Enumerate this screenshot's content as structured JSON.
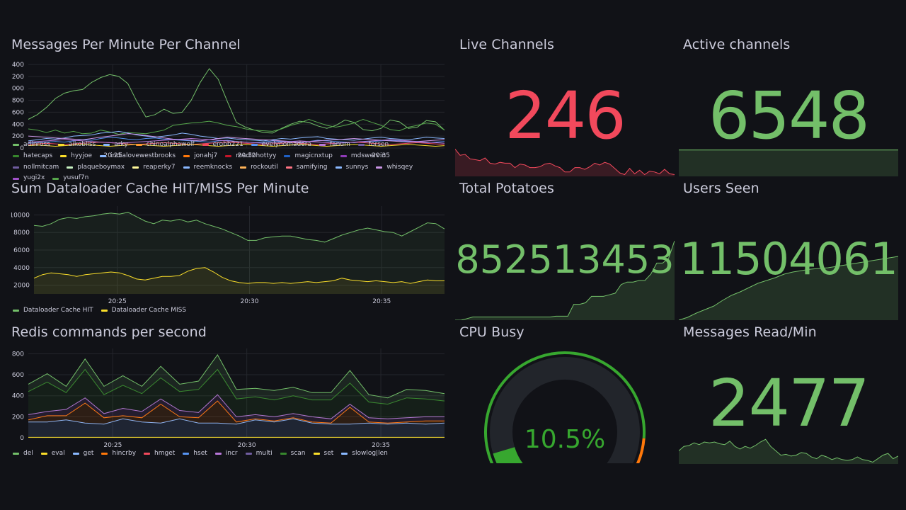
{
  "colors": {
    "background": "#111217",
    "grid": "#24262c",
    "axis_text": "#ccccdc",
    "stat_red": "#f2495c",
    "stat_green": "#73bf69",
    "gauge_green": "#37a72f",
    "gauge_orange": "#ff780a",
    "gauge_red": "#e02f44"
  },
  "panels": {
    "messages": {
      "title": "Messages Per Minute Per Channel",
      "legend": [
        {
          "name": "adinross",
          "color": "#73bf69"
        },
        {
          "name": "aikobliss",
          "color": "#fade2a"
        },
        {
          "name": "arky",
          "color": "#8ab8ff"
        },
        {
          "name": "chinoalphawolf",
          "color": "#ff9830"
        },
        {
          "name": "erobb221",
          "color": "#f2495c"
        },
        {
          "name": "evelynomadera",
          "color": "#5794f2"
        },
        {
          "name": "fanum",
          "color": "#b877d9"
        },
        {
          "name": "forsen",
          "color": "#705da0"
        },
        {
          "name": "hatecaps",
          "color": "#37872d"
        },
        {
          "name": "hyyjoe",
          "color": "#fade2a"
        },
        {
          "name": "indialovewestbrooks",
          "color": "#8ab8ff"
        },
        {
          "name": "jonahj7",
          "color": "#ff780a"
        },
        {
          "name": "madi2hottyy",
          "color": "#c4162a"
        },
        {
          "name": "magicnxtup",
          "color": "#1f60c4"
        },
        {
          "name": "mdswervin",
          "color": "#8f3bb8"
        },
        {
          "name": "nollmitcam",
          "color": "#705da0"
        },
        {
          "name": "plaqueboymax",
          "color": "#c8f2c2"
        },
        {
          "name": "reaperky7",
          "color": "#fff899"
        },
        {
          "name": "reemknocks",
          "color": "#8ab8ff"
        },
        {
          "name": "rockoutil",
          "color": "#ffb357"
        },
        {
          "name": "samifying",
          "color": "#ff7383"
        },
        {
          "name": "sunnys",
          "color": "#8ab8ff"
        },
        {
          "name": "whisqey",
          "color": "#ca95e5"
        },
        {
          "name": "yugi2x",
          "color": "#a352cc"
        },
        {
          "name": "yusuf7n",
          "color": "#56a64b"
        }
      ]
    },
    "dataloader": {
      "title": "Sum Dataloader Cache HIT/MISS Per Minute",
      "legend": [
        {
          "name": "Dataloader Cache HIT",
          "color": "#73bf69"
        },
        {
          "name": "Dataloader Cache MISS",
          "color": "#fade2a"
        }
      ]
    },
    "redis": {
      "title": "Redis commands per second",
      "legend": [
        {
          "name": "del",
          "color": "#73bf69"
        },
        {
          "name": "eval",
          "color": "#fade2a"
        },
        {
          "name": "get",
          "color": "#8ab8ff"
        },
        {
          "name": "hincrby",
          "color": "#ff780a"
        },
        {
          "name": "hmget",
          "color": "#f2495c"
        },
        {
          "name": "hset",
          "color": "#5794f2"
        },
        {
          "name": "incr",
          "color": "#b877d9"
        },
        {
          "name": "multi",
          "color": "#705da0"
        },
        {
          "name": "scan",
          "color": "#37872d"
        },
        {
          "name": "set",
          "color": "#fade2a"
        },
        {
          "name": "slowlog|len",
          "color": "#8ab8ff"
        }
      ]
    },
    "live_channels": {
      "title": "Live Channels",
      "value": "246",
      "color": "#f2495c",
      "spark": [
        0.62,
        0.48,
        0.5,
        0.4,
        0.38,
        0.36,
        0.42,
        0.3,
        0.28,
        0.32,
        0.3,
        0.3,
        0.2,
        0.28,
        0.26,
        0.2,
        0.2,
        0.22,
        0.28,
        0.3,
        0.24,
        0.2,
        0.1,
        0.1,
        0.2,
        0.2,
        0.16,
        0.22,
        0.3,
        0.26,
        0.32,
        0.28,
        0.18,
        0.08,
        0.04,
        0.18,
        0.06,
        0.14,
        0.04,
        0.12,
        0.1,
        0.06,
        0.16,
        0.06,
        0.04
      ]
    },
    "active_channels": {
      "title": "Active channels",
      "value": "6548",
      "color": "#73bf69",
      "spark": [
        0.6,
        0.6,
        0.6,
        0.6,
        0.6,
        0.6
      ]
    },
    "total_potatoes": {
      "title": "Total Potatoes",
      "value": "852513453",
      "color": "#73bf69",
      "spark": [
        0.0,
        0.0,
        0.02,
        0.04,
        0.04,
        0.04,
        0.04,
        0.04,
        0.04,
        0.04,
        0.04,
        0.04,
        0.04,
        0.04,
        0.04,
        0.04,
        0.04,
        0.05,
        0.05,
        0.05,
        0.2,
        0.2,
        0.22,
        0.3,
        0.3,
        0.3,
        0.32,
        0.34,
        0.45,
        0.48,
        0.48,
        0.5,
        0.5,
        0.58,
        0.72,
        0.72,
        0.78,
        1.0
      ]
    },
    "users_seen": {
      "title": "Users Seen",
      "value": "11504061",
      "color": "#73bf69",
      "spark": [
        0.0,
        0.04,
        0.1,
        0.15,
        0.2,
        0.28,
        0.35,
        0.4,
        0.46,
        0.52,
        0.56,
        0.6,
        0.65,
        0.68,
        0.7,
        0.72,
        0.73,
        0.74,
        0.76,
        0.78,
        0.8,
        0.82,
        0.84,
        0.86,
        0.88,
        0.9
      ]
    },
    "cpu_busy": {
      "title": "CPU Busy",
      "value": "10.5%",
      "percent": 10.5
    },
    "messages_read": {
      "title": "Messages Read/Min",
      "value": "2477",
      "color": "#73bf69",
      "spark": [
        0.3,
        0.4,
        0.42,
        0.48,
        0.44,
        0.5,
        0.48,
        0.5,
        0.46,
        0.44,
        0.52,
        0.4,
        0.34,
        0.4,
        0.36,
        0.42,
        0.5,
        0.56,
        0.4,
        0.3,
        0.2,
        0.22,
        0.18,
        0.2,
        0.26,
        0.24,
        0.16,
        0.12,
        0.2,
        0.16,
        0.1,
        0.14,
        0.1,
        0.08,
        0.1,
        0.16,
        0.1,
        0.08,
        0.04,
        0.12,
        0.2,
        0.24,
        0.12,
        0.18
      ]
    }
  },
  "chart_data": [
    {
      "type": "line",
      "title": "Messages Per Minute Per Channel",
      "x_ticks": [
        "20:25",
        "20:30",
        "20:35"
      ],
      "y_ticks": [
        "1400",
        "1200",
        "1000",
        "800",
        "600",
        "400",
        "200",
        "0"
      ],
      "ylim": [
        0,
        1400
      ],
      "series": [
        {
          "name": "adinross",
          "color": "#73bf69",
          "values": [
            480,
            560,
            680,
            830,
            920,
            960,
            980,
            1100,
            1180,
            1230,
            1200,
            1080,
            780,
            520,
            560,
            650,
            580,
            600,
            800,
            1100,
            1330,
            1150,
            780,
            430,
            350,
            300,
            260,
            250,
            330,
            400,
            450,
            430,
            370,
            330,
            380,
            470,
            430,
            310,
            290,
            330,
            470,
            440,
            330,
            350,
            460,
            440,
            300
          ]
        },
        {
          "name": "yusuf7n",
          "color": "#56a64b",
          "values": [
            320,
            300,
            260,
            300,
            250,
            280,
            240,
            250,
            300,
            270,
            230,
            260,
            250,
            240,
            270,
            300,
            380,
            400,
            420,
            430,
            450,
            420,
            380,
            360,
            320,
            300,
            290,
            280,
            320,
            380,
            420,
            480,
            430,
            380,
            350,
            380,
            420,
            480,
            430,
            380,
            310,
            290,
            350,
            380,
            420,
            400,
            300
          ]
        },
        {
          "name": "arky",
          "color": "#8ab8ff",
          "values": [
            120,
            140,
            160,
            150,
            170,
            200,
            210,
            220,
            250,
            260,
            280,
            250,
            220,
            200,
            180,
            200,
            220,
            250,
            230,
            200,
            180,
            160,
            170,
            150,
            140,
            130,
            120,
            140,
            160,
            150,
            170,
            180,
            190,
            160,
            150,
            140,
            130,
            150,
            170,
            180,
            160,
            150,
            140,
            160,
            180,
            170,
            160
          ]
        },
        {
          "name": "evelynomadera",
          "color": "#5794f2",
          "values": [
            80,
            90,
            100,
            110,
            100,
            120,
            140,
            130,
            160,
            180,
            170,
            150,
            140,
            160,
            170,
            150,
            140,
            130,
            120,
            110,
            100,
            120,
            130,
            110,
            100,
            90,
            100,
            120,
            110,
            100,
            90,
            110,
            130,
            120,
            110,
            100,
            90,
            100,
            110,
            120,
            130,
            120,
            110,
            100,
            90,
            100,
            110
          ]
        },
        {
          "name": "whisqey",
          "color": "#ca95e5",
          "values": [
            200,
            190,
            180,
            170,
            160,
            150,
            140,
            160,
            180,
            200,
            220,
            240,
            230,
            210,
            190,
            170,
            150,
            140,
            130,
            120,
            140,
            160,
            180,
            170,
            160,
            150,
            140,
            130,
            120,
            110,
            100,
            110,
            120,
            130,
            140,
            150,
            160,
            150,
            140,
            130,
            120,
            110,
            100,
            110,
            120,
            130,
            140
          ]
        },
        {
          "name": "erobb221",
          "color": "#f2495c",
          "values": [
            60,
            70,
            80,
            70,
            60,
            70,
            80,
            90,
            100,
            90,
            80,
            70,
            60,
            70,
            80,
            90,
            80,
            70,
            60,
            70,
            80,
            90,
            100,
            90,
            80,
            70,
            60,
            70,
            80,
            90,
            80,
            70,
            60,
            70,
            80,
            90,
            100,
            90,
            80,
            70,
            60,
            70,
            80,
            90,
            80,
            70,
            60
          ]
        },
        {
          "name": "fanum",
          "color": "#b877d9",
          "values": [
            100,
            110,
            120,
            130,
            140,
            130,
            120,
            110,
            100,
            90,
            80,
            90,
            100,
            110,
            120,
            130,
            140,
            150,
            160,
            150,
            140,
            130,
            120,
            110,
            100,
            90,
            80,
            90,
            100,
            110,
            120,
            110,
            100,
            90,
            80,
            90,
            100,
            110,
            120,
            130,
            140,
            130,
            120,
            110,
            100,
            90,
            80
          ]
        },
        {
          "name": "aikobliss",
          "color": "#fade2a",
          "values": [
            40,
            50,
            40,
            30,
            40,
            50,
            60,
            50,
            40,
            30,
            40,
            50,
            60,
            50,
            40,
            30,
            40,
            50,
            60,
            50,
            40,
            30,
            40,
            50,
            60,
            50,
            40,
            30,
            40,
            50,
            60,
            50,
            40,
            30,
            40,
            50,
            60,
            50,
            40,
            30,
            40,
            50,
            60,
            50,
            40,
            30,
            40
          ]
        }
      ]
    },
    {
      "type": "line",
      "title": "Sum Dataloader Cache HIT/MISS Per Minute",
      "x_ticks": [
        "20:25",
        "20:30",
        "20:35"
      ],
      "y_ticks": [
        "10000",
        "8000",
        "6000",
        "4000",
        "2000"
      ],
      "ylim": [
        1000,
        11000
      ],
      "series": [
        {
          "name": "Dataloader Cache HIT",
          "color": "#73bf69",
          "values": [
            8800,
            8700,
            9000,
            9500,
            9700,
            9600,
            9800,
            9900,
            10100,
            10200,
            10100,
            10300,
            9800,
            9300,
            9000,
            9400,
            9300,
            9500,
            9200,
            9400,
            9000,
            8700,
            8400,
            8000,
            7600,
            7100,
            7100,
            7400,
            7500,
            7600,
            7600,
            7400,
            7200,
            7100,
            6900,
            7300,
            7700,
            8000,
            8300,
            8500,
            8300,
            8100,
            8000,
            7600,
            8100,
            8600,
            9100,
            9000,
            8400
          ]
        },
        {
          "name": "Dataloader Cache MISS",
          "color": "#fade2a",
          "values": [
            2800,
            3200,
            3400,
            3300,
            3200,
            3000,
            3200,
            3300,
            3400,
            3500,
            3400,
            3100,
            2700,
            2600,
            2800,
            3000,
            3000,
            3100,
            3600,
            3900,
            4000,
            3500,
            2900,
            2500,
            2300,
            2200,
            2300,
            2300,
            2200,
            2300,
            2200,
            2300,
            2400,
            2300,
            2400,
            2500,
            2800,
            2600,
            2500,
            2400,
            2500,
            2400,
            2300,
            2400,
            2200,
            2400,
            2600,
            2500,
            2500
          ]
        }
      ]
    },
    {
      "type": "area",
      "title": "Redis commands per second",
      "stacked": true,
      "x_ticks": [
        "20:25",
        "20:30",
        "20:35"
      ],
      "y_ticks": [
        "800",
        "600",
        "400",
        "200",
        "0"
      ],
      "ylim": [
        0,
        850
      ],
      "series": [
        {
          "name": "get",
          "color": "#8ab8ff",
          "values": [
            150,
            150,
            170,
            140,
            130,
            180,
            150,
            140,
            180,
            140,
            140,
            130,
            170,
            150,
            180,
            140,
            130,
            130,
            140,
            130,
            140,
            130,
            140
          ]
        },
        {
          "name": "hincrby",
          "color": "#ff780a",
          "values": [
            20,
            60,
            40,
            190,
            60,
            30,
            40,
            180,
            20,
            50,
            210,
            20,
            10,
            10,
            10,
            10,
            10,
            160,
            10,
            10,
            10,
            30,
            20
          ]
        },
        {
          "name": "incr",
          "color": "#b877d9",
          "values": [
            50,
            40,
            60,
            50,
            40,
            70,
            60,
            50,
            60,
            50,
            60,
            50,
            40,
            40,
            40,
            50,
            40,
            30,
            40,
            40,
            40,
            40,
            40
          ]
        },
        {
          "name": "scan",
          "color": "#37872d",
          "values": [
            220,
            280,
            160,
            270,
            180,
            220,
            170,
            200,
            180,
            220,
            240,
            170,
            170,
            160,
            170,
            160,
            180,
            200,
            150,
            140,
            190,
            170,
            150
          ]
        },
        {
          "name": "del",
          "color": "#73bf69",
          "values": [
            70,
            80,
            60,
            100,
            80,
            90,
            70,
            110,
            70,
            80,
            140,
            90,
            80,
            90,
            80,
            70,
            70,
            120,
            70,
            60,
            80,
            80,
            70
          ]
        }
      ]
    }
  ]
}
